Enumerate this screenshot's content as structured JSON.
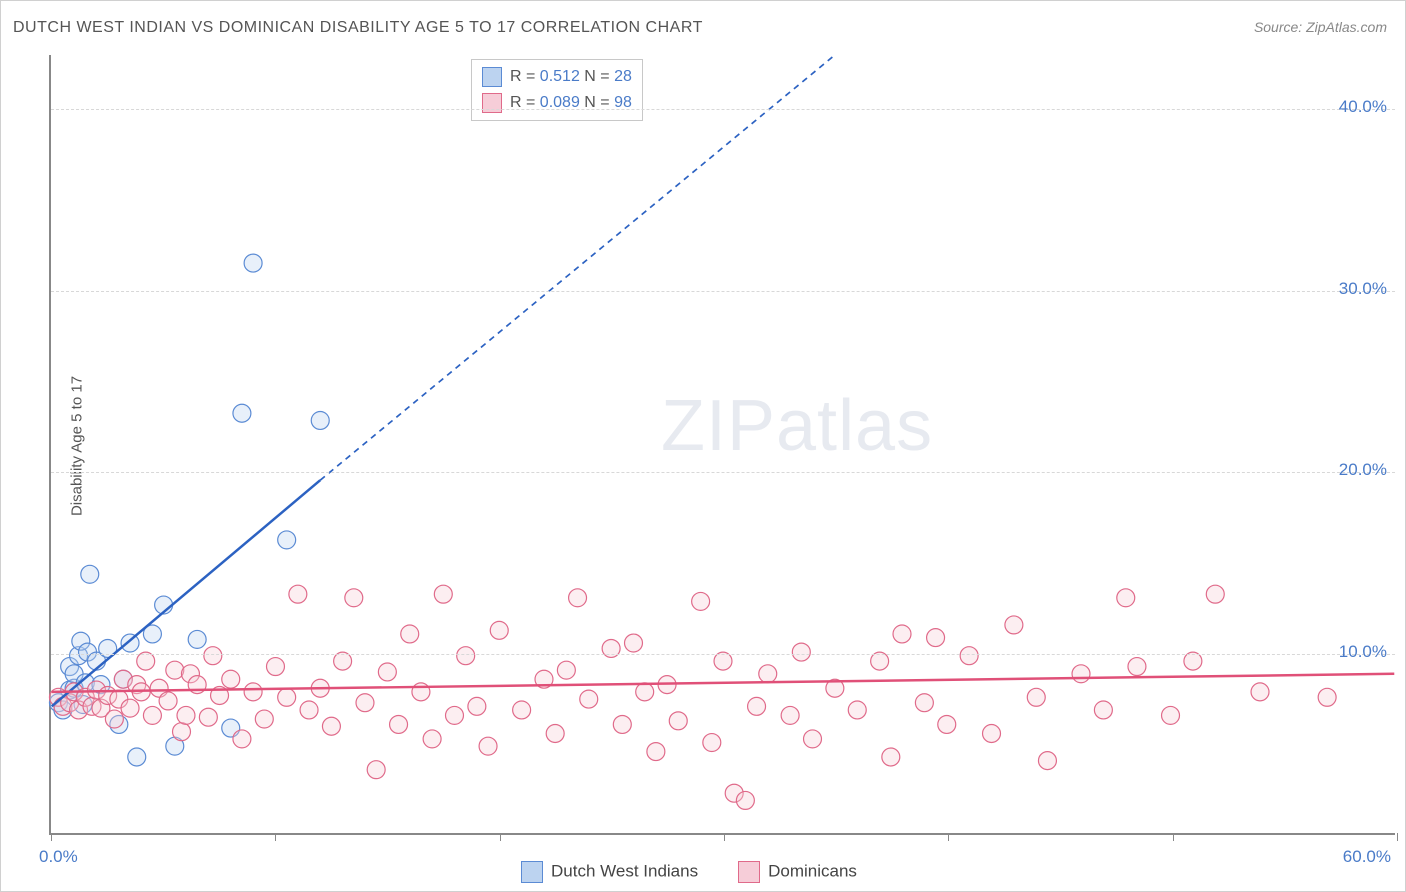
{
  "title": "DUTCH WEST INDIAN VS DOMINICAN DISABILITY AGE 5 TO 17 CORRELATION CHART",
  "source": "Source: ZipAtlas.com",
  "ylabel": "Disability Age 5 to 17",
  "watermark_zip": "ZIP",
  "watermark_atlas": "atlas",
  "chart": {
    "type": "scatter",
    "background_color": "#ffffff",
    "grid_color": "#d8d8d8",
    "axis_color": "#888888",
    "tick_label_color": "#4a7bc8",
    "xlim": [
      0,
      60
    ],
    "ylim": [
      0,
      43
    ],
    "xtick_positions": [
      0,
      10,
      20,
      30,
      40,
      50,
      60
    ],
    "xtick_labels": [
      "0.0%",
      "",
      "",
      "",
      "",
      "",
      "60.0%"
    ],
    "ytick_positions": [
      10,
      20,
      30,
      40
    ],
    "ytick_labels": [
      "10.0%",
      "20.0%",
      "30.0%",
      "40.0%"
    ],
    "marker_radius": 9,
    "marker_fill_opacity": 0.35,
    "marker_stroke_width": 1.2,
    "trendline_width": 2.5,
    "trendline_dash": "6,5"
  },
  "statbox": {
    "rows": [
      {
        "swatch_fill": "#bcd3f0",
        "swatch_border": "#5b8bd4",
        "R_label": "R = ",
        "R_value": "0.512",
        "N_label": "   N = ",
        "N_value": "28"
      },
      {
        "swatch_fill": "#f6cdd8",
        "swatch_border": "#e06a8a",
        "R_label": "R = ",
        "R_value": "0.089",
        "N_label": "   N = ",
        "N_value": "98"
      }
    ]
  },
  "legend": {
    "items": [
      {
        "swatch_fill": "#bcd3f0",
        "swatch_border": "#5b8bd4",
        "label": "Dutch West Indians"
      },
      {
        "swatch_fill": "#f6cdd8",
        "swatch_border": "#e06a8a",
        "label": "Dominicans"
      }
    ]
  },
  "series": [
    {
      "name": "Dutch West Indians",
      "fill": "#bcd3f0",
      "stroke": "#5b8bd4",
      "trend_color": "#2c62c2",
      "trend": {
        "x1": 0,
        "y1": 7.0,
        "x2_solid": 12,
        "y2_solid": 19.5,
        "x2_dash": 35,
        "y2_dash": 43
      },
      "points": [
        [
          0.3,
          7.2
        ],
        [
          0.5,
          6.8
        ],
        [
          0.8,
          7.9
        ],
        [
          0.8,
          9.2
        ],
        [
          1.0,
          8.0
        ],
        [
          1.0,
          8.8
        ],
        [
          1.2,
          9.8
        ],
        [
          1.3,
          10.6
        ],
        [
          1.4,
          7.1
        ],
        [
          1.5,
          8.3
        ],
        [
          1.6,
          10.0
        ],
        [
          1.7,
          14.3
        ],
        [
          2.0,
          9.5
        ],
        [
          2.2,
          8.2
        ],
        [
          2.5,
          10.2
        ],
        [
          3.0,
          6.0
        ],
        [
          3.2,
          8.5
        ],
        [
          3.5,
          10.5
        ],
        [
          3.8,
          4.2
        ],
        [
          4.5,
          11.0
        ],
        [
          5.0,
          12.6
        ],
        [
          5.5,
          4.8
        ],
        [
          6.5,
          10.7
        ],
        [
          8.0,
          5.8
        ],
        [
          8.5,
          23.2
        ],
        [
          9.0,
          31.5
        ],
        [
          10.5,
          16.2
        ],
        [
          12.0,
          22.8
        ]
      ]
    },
    {
      "name": "Dominicans",
      "fill": "#f6cdd8",
      "stroke": "#e06a8a",
      "trend_color": "#e05078",
      "trend": {
        "x1": 0,
        "y1": 7.8,
        "x2_solid": 60,
        "y2_solid": 8.8,
        "x2_dash": 60,
        "y2_dash": 8.8
      },
      "points": [
        [
          0.3,
          7.5
        ],
        [
          0.5,
          7.0
        ],
        [
          0.8,
          7.2
        ],
        [
          1.0,
          7.8
        ],
        [
          1.2,
          6.8
        ],
        [
          1.5,
          7.5
        ],
        [
          1.8,
          7.0
        ],
        [
          2.0,
          7.9
        ],
        [
          2.2,
          6.9
        ],
        [
          2.5,
          7.6
        ],
        [
          2.8,
          6.3
        ],
        [
          3.0,
          7.4
        ],
        [
          3.2,
          8.5
        ],
        [
          3.5,
          6.9
        ],
        [
          3.8,
          8.2
        ],
        [
          4.0,
          7.8
        ],
        [
          4.2,
          9.5
        ],
        [
          4.5,
          6.5
        ],
        [
          4.8,
          8.0
        ],
        [
          5.2,
          7.3
        ],
        [
          5.5,
          9.0
        ],
        [
          5.8,
          5.6
        ],
        [
          6.0,
          6.5
        ],
        [
          6.2,
          8.8
        ],
        [
          6.5,
          8.2
        ],
        [
          7.0,
          6.4
        ],
        [
          7.2,
          9.8
        ],
        [
          7.5,
          7.6
        ],
        [
          8.0,
          8.5
        ],
        [
          8.5,
          5.2
        ],
        [
          9.0,
          7.8
        ],
        [
          9.5,
          6.3
        ],
        [
          10.0,
          9.2
        ],
        [
          10.5,
          7.5
        ],
        [
          11.0,
          13.2
        ],
        [
          11.5,
          6.8
        ],
        [
          12.0,
          8.0
        ],
        [
          12.5,
          5.9
        ],
        [
          13.0,
          9.5
        ],
        [
          13.5,
          13.0
        ],
        [
          14.0,
          7.2
        ],
        [
          14.5,
          3.5
        ],
        [
          15.0,
          8.9
        ],
        [
          15.5,
          6.0
        ],
        [
          16.0,
          11.0
        ],
        [
          16.5,
          7.8
        ],
        [
          17.0,
          5.2
        ],
        [
          17.5,
          13.2
        ],
        [
          18.0,
          6.5
        ],
        [
          18.5,
          9.8
        ],
        [
          19.0,
          7.0
        ],
        [
          19.5,
          4.8
        ],
        [
          20.0,
          11.2
        ],
        [
          21.0,
          6.8
        ],
        [
          22.0,
          8.5
        ],
        [
          22.5,
          5.5
        ],
        [
          23.0,
          9.0
        ],
        [
          23.5,
          13.0
        ],
        [
          24.0,
          7.4
        ],
        [
          25.0,
          10.2
        ],
        [
          25.5,
          6.0
        ],
        [
          26.0,
          10.5
        ],
        [
          26.5,
          7.8
        ],
        [
          27.0,
          4.5
        ],
        [
          27.5,
          8.2
        ],
        [
          28.0,
          6.2
        ],
        [
          29.0,
          12.8
        ],
        [
          29.5,
          5.0
        ],
        [
          30.0,
          9.5
        ],
        [
          30.5,
          2.2
        ],
        [
          31.0,
          1.8
        ],
        [
          31.5,
          7.0
        ],
        [
          32.0,
          8.8
        ],
        [
          33.0,
          6.5
        ],
        [
          33.5,
          10.0
        ],
        [
          34.0,
          5.2
        ],
        [
          35.0,
          8.0
        ],
        [
          36.0,
          6.8
        ],
        [
          37.0,
          9.5
        ],
        [
          37.5,
          4.2
        ],
        [
          38.0,
          11.0
        ],
        [
          39.0,
          7.2
        ],
        [
          39.5,
          10.8
        ],
        [
          40.0,
          6.0
        ],
        [
          41.0,
          9.8
        ],
        [
          42.0,
          5.5
        ],
        [
          43.0,
          11.5
        ],
        [
          44.0,
          7.5
        ],
        [
          44.5,
          4.0
        ],
        [
          46.0,
          8.8
        ],
        [
          47.0,
          6.8
        ],
        [
          48.0,
          13.0
        ],
        [
          48.5,
          9.2
        ],
        [
          50.0,
          6.5
        ],
        [
          51.0,
          9.5
        ],
        [
          52.0,
          13.2
        ],
        [
          54.0,
          7.8
        ],
        [
          57.0,
          7.5
        ]
      ]
    }
  ]
}
